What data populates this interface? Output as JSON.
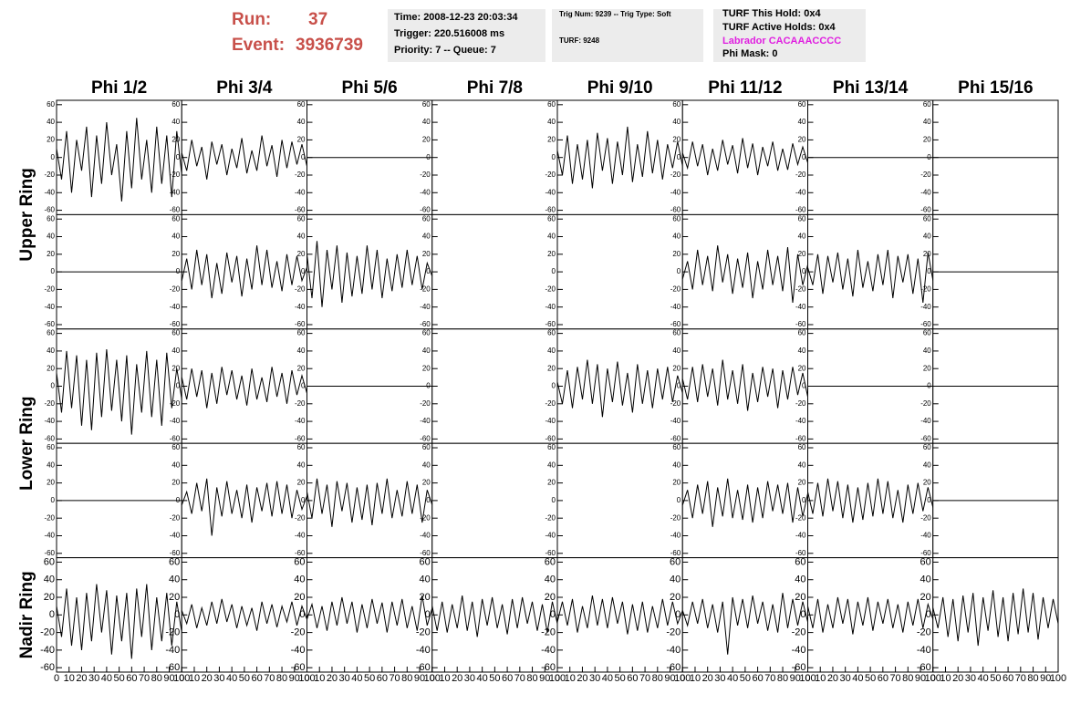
{
  "header": {
    "run_label": "Run:",
    "run": "37",
    "event_label": "Event:",
    "event": "3936739",
    "time": "Time: 2008-12-23 20:03:34",
    "trigger": "Trigger: 220.516008 ms",
    "priority": "Priority: 7 -- Queue: 7",
    "trig_num": "Trig Num: 9239 -- Trig Type: Soft",
    "turf": "TURF: 9248",
    "turf_hold": "TURF This Hold: 0x4",
    "turf_active": "TURF Active Holds: 0x4",
    "labrador": "Labrador CACAAACCCC",
    "phi_mask": "Phi Mask: 0"
  },
  "chart_data": {
    "type": "line",
    "columns": [
      "Phi 1/2",
      "Phi 3/4",
      "Phi 5/6",
      "Phi 7/8",
      "Phi 9/10",
      "Phi 11/12",
      "Phi 13/14",
      "Phi 15/16"
    ],
    "row_labels": [
      "Upper Ring",
      "Lower Ring",
      "Nadir Ring"
    ],
    "color": "#000000",
    "xlim": [
      0,
      100
    ],
    "xticks": [
      0,
      10,
      20,
      30,
      40,
      50,
      60,
      70,
      80,
      90,
      100
    ],
    "ylim": [
      -65,
      65
    ],
    "yticks": [
      -60,
      -40,
      -20,
      0,
      20,
      40,
      60
    ],
    "x": [
      0,
      4,
      8,
      12,
      16,
      20,
      24,
      28,
      32,
      36,
      40,
      44,
      48,
      52,
      56,
      60,
      64,
      68,
      72,
      76,
      80,
      84,
      88,
      92,
      96,
      100
    ],
    "series": [
      {
        "values": [
          10,
          -25,
          30,
          -40,
          20,
          -15,
          35,
          -45,
          25,
          -30,
          40,
          -20,
          15,
          -50,
          30,
          -35,
          45,
          -25,
          20,
          -40,
          35,
          -30,
          25,
          -45,
          30,
          -20
        ]
      },
      {
        "values": [
          5,
          -15,
          20,
          -10,
          12,
          -25,
          18,
          -8,
          15,
          -20,
          10,
          -12,
          22,
          -18,
          8,
          -15,
          25,
          -10,
          14,
          -22,
          20,
          -12,
          18,
          -8,
          15,
          -10
        ]
      },
      {
        "values": [
          0,
          0,
          0,
          0,
          0,
          0,
          0,
          0,
          0,
          0,
          0,
          0,
          0,
          0,
          0,
          0,
          0,
          0,
          0,
          0,
          0,
          0,
          0,
          0,
          0,
          0
        ]
      },
      {
        "values": [
          null,
          null,
          null,
          null,
          null,
          null,
          null,
          null,
          null,
          null,
          null,
          null,
          null,
          null,
          null,
          null,
          null,
          null,
          null,
          null,
          null,
          null,
          null,
          null,
          null,
          null
        ]
      },
      {
        "values": [
          8,
          -20,
          25,
          -30,
          15,
          -25,
          20,
          -35,
          28,
          -15,
          22,
          -30,
          18,
          -20,
          35,
          -28,
          15,
          -22,
          30,
          -18,
          20,
          -25,
          15,
          -12,
          18,
          -10
        ]
      },
      {
        "values": [
          5,
          -12,
          18,
          -10,
          15,
          -20,
          10,
          -15,
          20,
          -8,
          14,
          -18,
          22,
          -12,
          16,
          -20,
          12,
          -10,
          18,
          -15,
          10,
          -14,
          16,
          -8,
          12,
          -6
        ]
      },
      {
        "values": [
          0,
          0,
          0,
          0,
          0,
          0,
          0,
          0,
          0,
          0,
          0,
          0,
          0,
          0,
          0,
          0,
          0,
          0,
          0,
          0,
          0,
          0,
          0,
          0,
          0,
          0
        ]
      },
      {
        "values": [
          0,
          0,
          0,
          0,
          0,
          0,
          0,
          0,
          0,
          0,
          0,
          0,
          0,
          0,
          0,
          0,
          0,
          0,
          0,
          0,
          0,
          0,
          0,
          0,
          0,
          0
        ]
      },
      {
        "values": [
          0,
          0,
          0,
          0,
          0,
          0,
          0,
          0,
          0,
          0,
          0,
          0,
          0,
          0,
          0,
          0,
          0,
          0,
          0,
          0,
          0,
          0,
          0,
          0,
          0,
          0
        ]
      },
      {
        "values": [
          -10,
          15,
          -20,
          25,
          -15,
          20,
          -30,
          10,
          -25,
          22,
          -12,
          18,
          -28,
          15,
          -20,
          30,
          -15,
          25,
          -18,
          12,
          -22,
          20,
          -15,
          18,
          -10,
          5
        ]
      },
      {
        "values": [
          20,
          -30,
          35,
          -40,
          25,
          -20,
          30,
          -35,
          22,
          -28,
          18,
          -25,
          30,
          -20,
          25,
          -30,
          15,
          -22,
          20,
          -18,
          25,
          -15,
          18,
          -20,
          10,
          -5
        ]
      },
      {
        "values": [
          null,
          null,
          null,
          null,
          null,
          null,
          null,
          null,
          null,
          null,
          null,
          null,
          null,
          null,
          null,
          null,
          null,
          null,
          null,
          null,
          null,
          null,
          null,
          null,
          null,
          null
        ]
      },
      {
        "values": [
          null,
          null,
          null,
          null,
          null,
          null,
          null,
          null,
          null,
          null,
          null,
          null,
          null,
          null,
          null,
          null,
          null,
          null,
          null,
          null,
          null,
          null,
          null,
          null,
          null,
          null
        ]
      },
      {
        "values": [
          -8,
          12,
          -20,
          25,
          -15,
          18,
          -22,
          30,
          -12,
          20,
          -25,
          15,
          -18,
          22,
          -30,
          12,
          -20,
          25,
          -15,
          18,
          -22,
          28,
          -35,
          20,
          -15,
          8
        ]
      },
      {
        "values": [
          5,
          -15,
          20,
          -25,
          18,
          -12,
          22,
          -20,
          15,
          -28,
          25,
          -18,
          12,
          -22,
          20,
          -15,
          25,
          -30,
          18,
          -12,
          20,
          -25,
          15,
          -35,
          22,
          -10
        ]
      },
      {
        "values": [
          0,
          0,
          0,
          0,
          0,
          0,
          0,
          0,
          0,
          0,
          0,
          0,
          0,
          0,
          0,
          0,
          0,
          0,
          0,
          0,
          0,
          0,
          0,
          0,
          0,
          0
        ]
      },
      {
        "values": [
          15,
          -30,
          40,
          -25,
          35,
          -45,
          30,
          -50,
          38,
          -35,
          42,
          -28,
          30,
          -40,
          35,
          -55,
          25,
          -30,
          40,
          -35,
          30,
          -45,
          38,
          -25,
          20,
          -15
        ]
      },
      {
        "values": [
          10,
          -15,
          20,
          -12,
          18,
          -25,
          15,
          -20,
          22,
          -10,
          18,
          -15,
          12,
          -22,
          20,
          -15,
          10,
          -18,
          22,
          -12,
          15,
          -20,
          18,
          -10,
          12,
          -8
        ]
      },
      {
        "values": [
          0,
          0,
          0,
          0,
          0,
          0,
          0,
          0,
          0,
          0,
          0,
          0,
          0,
          0,
          0,
          0,
          0,
          0,
          0,
          0,
          0,
          0,
          0,
          0,
          0,
          0
        ]
      },
      {
        "values": [
          null,
          null,
          null,
          null,
          null,
          null,
          null,
          null,
          null,
          null,
          null,
          null,
          null,
          null,
          null,
          null,
          null,
          null,
          null,
          null,
          null,
          null,
          null,
          null,
          null,
          null
        ]
      },
      {
        "values": [
          5,
          -20,
          18,
          -25,
          22,
          -15,
          30,
          -20,
          25,
          -35,
          20,
          -18,
          28,
          -22,
          15,
          -30,
          25,
          -20,
          18,
          -25,
          20,
          -15,
          22,
          -18,
          12,
          -8
        ]
      },
      {
        "values": [
          8,
          -15,
          22,
          -18,
          25,
          -12,
          20,
          -22,
          30,
          -15,
          18,
          -20,
          25,
          -28,
          15,
          -18,
          22,
          -12,
          20,
          -25,
          18,
          -15,
          22,
          -10,
          15,
          -12
        ]
      },
      {
        "values": [
          0,
          0,
          0,
          0,
          0,
          0,
          0,
          0,
          0,
          0,
          0,
          0,
          0,
          0,
          0,
          0,
          0,
          0,
          0,
          0,
          0,
          0,
          0,
          0,
          0,
          0
        ]
      },
      {
        "values": [
          0,
          0,
          0,
          0,
          0,
          0,
          0,
          0,
          0,
          0,
          0,
          0,
          0,
          0,
          0,
          0,
          0,
          0,
          0,
          0,
          0,
          0,
          0,
          0,
          0,
          0
        ]
      },
      {
        "values": [
          0,
          0,
          0,
          0,
          0,
          0,
          0,
          0,
          0,
          0,
          0,
          0,
          0,
          0,
          0,
          0,
          0,
          0,
          0,
          0,
          0,
          0,
          0,
          0,
          0,
          0
        ]
      },
      {
        "values": [
          -5,
          10,
          -15,
          20,
          -12,
          25,
          -40,
          15,
          -18,
          22,
          -15,
          12,
          -20,
          18,
          -25,
          15,
          -12,
          20,
          -18,
          22,
          -15,
          18,
          -20,
          12,
          -10,
          5
        ]
      },
      {
        "values": [
          10,
          -20,
          25,
          -15,
          18,
          -30,
          22,
          -12,
          20,
          -25,
          15,
          -22,
          18,
          -28,
          20,
          -15,
          25,
          -20,
          12,
          -18,
          22,
          -15,
          18,
          -25,
          12,
          -5
        ]
      },
      {
        "values": [
          null,
          null,
          null,
          null,
          null,
          null,
          null,
          null,
          null,
          null,
          null,
          null,
          null,
          null,
          null,
          null,
          null,
          null,
          null,
          null,
          null,
          null,
          null,
          null,
          null,
          null
        ]
      },
      {
        "values": [
          null,
          null,
          null,
          null,
          null,
          null,
          null,
          null,
          null,
          null,
          null,
          null,
          null,
          null,
          null,
          null,
          null,
          null,
          null,
          null,
          null,
          null,
          null,
          null,
          null,
          null
        ]
      },
      {
        "values": [
          -5,
          12,
          -20,
          18,
          -15,
          22,
          -30,
          15,
          -18,
          25,
          -20,
          12,
          -22,
          18,
          -25,
          15,
          -20,
          22,
          -12,
          18,
          -15,
          20,
          -25,
          15,
          -18,
          8
        ]
      },
      {
        "values": [
          10,
          -15,
          20,
          -18,
          25,
          -12,
          22,
          -20,
          18,
          -25,
          15,
          -22,
          20,
          -18,
          25,
          -15,
          22,
          -20,
          12,
          -25,
          18,
          -15,
          20,
          -12,
          15,
          -8
        ]
      },
      {
        "values": [
          0,
          0,
          0,
          0,
          0,
          0,
          0,
          0,
          0,
          0,
          0,
          0,
          0,
          0,
          0,
          0,
          0,
          0,
          0,
          0,
          0,
          0,
          0,
          0,
          0,
          0
        ]
      },
      {
        "values": [
          10,
          -25,
          30,
          -35,
          20,
          -40,
          25,
          -30,
          35,
          -20,
          28,
          -45,
          22,
          -30,
          25,
          -50,
          30,
          -25,
          35,
          -40,
          20,
          -30,
          25,
          -35,
          15,
          -20
        ]
      },
      {
        "values": [
          5,
          -10,
          12,
          -15,
          8,
          -12,
          15,
          -10,
          18,
          -8,
          12,
          -15,
          10,
          -12,
          8,
          -18,
          15,
          -10,
          12,
          -14,
          10,
          -8,
          15,
          -12,
          10,
          -5
        ]
      },
      {
        "values": [
          -5,
          12,
          -15,
          10,
          -18,
          15,
          -12,
          20,
          -10,
          15,
          -20,
          12,
          -15,
          18,
          -10,
          14,
          -20,
          15,
          -12,
          18,
          -15,
          10,
          -18,
          22,
          -12,
          8
        ]
      },
      {
        "values": [
          10,
          -18,
          15,
          -20,
          12,
          -15,
          22,
          -18,
          15,
          -25,
          18,
          -12,
          20,
          -15,
          12,
          -22,
          18,
          -15,
          20,
          -10,
          15,
          -18,
          12,
          -20,
          15,
          -10
        ]
      },
      {
        "values": [
          -8,
          15,
          -12,
          18,
          -20,
          10,
          -15,
          22,
          -12,
          18,
          -15,
          20,
          -10,
          15,
          -22,
          12,
          -18,
          15,
          -20,
          10,
          -15,
          18,
          -12,
          15,
          -10,
          5
        ]
      },
      {
        "values": [
          5,
          -12,
          15,
          -10,
          18,
          -15,
          12,
          -20,
          15,
          -45,
          20,
          -12,
          18,
          -15,
          22,
          -10,
          15,
          -18,
          12,
          -20,
          25,
          -15,
          18,
          -12,
          15,
          -8
        ]
      },
      {
        "values": [
          10,
          -15,
          18,
          -20,
          12,
          -15,
          20,
          -10,
          18,
          -22,
          15,
          -12,
          20,
          -18,
          15,
          -10,
          18,
          -15,
          12,
          -20,
          15,
          -12,
          18,
          -15,
          12,
          -5
        ]
      },
      {
        "values": [
          8,
          -15,
          20,
          -25,
          18,
          -30,
          22,
          -20,
          25,
          -35,
          20,
          -18,
          28,
          -25,
          20,
          -30,
          25,
          -22,
          30,
          -20,
          25,
          -28,
          20,
          -15,
          18,
          -10
        ]
      }
    ]
  }
}
